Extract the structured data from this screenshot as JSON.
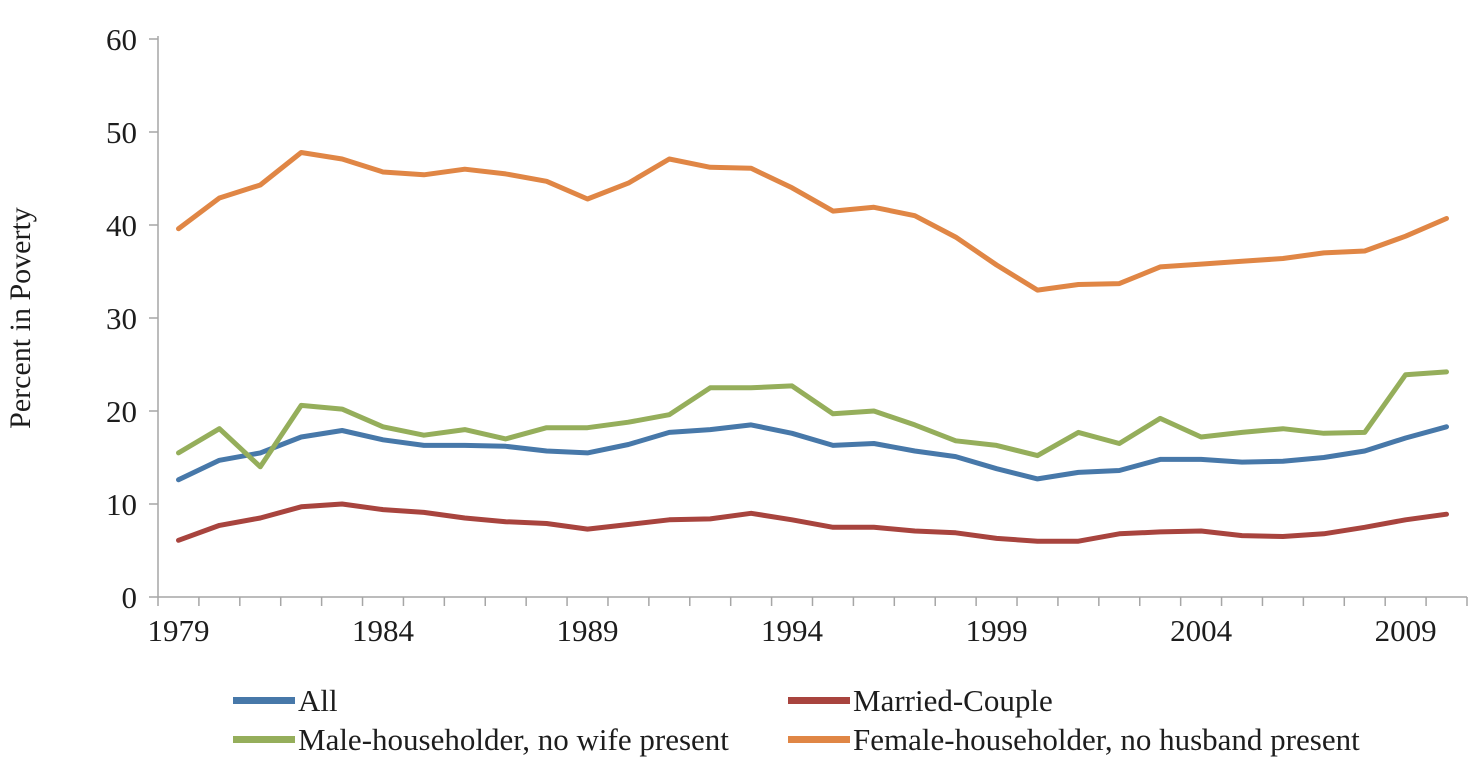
{
  "chart_data": {
    "type": "line",
    "title": "",
    "xlabel": "",
    "ylabel": "Percent in Poverty",
    "ylim": [
      0,
      60
    ],
    "yticks": [
      0,
      10,
      20,
      30,
      40,
      50,
      60
    ],
    "grid": false,
    "legend_position": "bottom",
    "x": [
      1979,
      1980,
      1981,
      1982,
      1983,
      1984,
      1985,
      1986,
      1987,
      1988,
      1989,
      1990,
      1991,
      1992,
      1993,
      1994,
      1995,
      1996,
      1997,
      1998,
      1999,
      2000,
      2001,
      2002,
      2003,
      2004,
      2005,
      2006,
      2007,
      2008,
      2009,
      2010
    ],
    "xticks": [
      1979,
      1984,
      1989,
      1994,
      1999,
      2004,
      2009
    ],
    "axis_color": "#a6a6a6",
    "text_color": "#1d1d1d",
    "series": [
      {
        "name": "All",
        "color": "#4778A9",
        "values": [
          12.6,
          14.7,
          15.5,
          17.2,
          17.9,
          16.9,
          16.3,
          16.3,
          16.2,
          15.7,
          15.5,
          16.4,
          17.7,
          18.0,
          18.5,
          17.6,
          16.3,
          16.5,
          15.7,
          15.1,
          13.8,
          12.7,
          13.4,
          13.6,
          14.8,
          14.8,
          14.5,
          14.6,
          15.0,
          15.7,
          17.1,
          18.3
        ]
      },
      {
        "name": "Married-Couple",
        "color": "#A8443E",
        "values": [
          6.1,
          7.7,
          8.5,
          9.7,
          10.0,
          9.4,
          9.1,
          8.5,
          8.1,
          7.9,
          7.3,
          7.8,
          8.3,
          8.4,
          9.0,
          8.3,
          7.5,
          7.5,
          7.1,
          6.9,
          6.3,
          6.0,
          6.0,
          6.8,
          7.0,
          7.1,
          6.6,
          6.5,
          6.8,
          7.5,
          8.3,
          8.9
        ]
      },
      {
        "name": "Male-householder, no wife present",
        "color": "#95AE5B",
        "values": [
          15.5,
          18.1,
          14.0,
          20.6,
          20.2,
          18.3,
          17.4,
          18.0,
          17.0,
          18.2,
          18.2,
          18.8,
          19.6,
          22.5,
          22.5,
          22.7,
          19.7,
          20.0,
          18.5,
          16.8,
          16.3,
          15.2,
          17.7,
          16.5,
          19.2,
          17.2,
          17.7,
          18.1,
          17.6,
          17.7,
          23.9,
          24.2
        ]
      },
      {
        "name": "Female-householder, no husband present",
        "color": "#E08645",
        "values": [
          39.6,
          42.9,
          44.3,
          47.8,
          47.1,
          45.7,
          45.4,
          46.0,
          45.5,
          44.7,
          42.8,
          44.5,
          47.1,
          46.2,
          46.1,
          44.0,
          41.5,
          41.9,
          41.0,
          38.7,
          35.7,
          33.0,
          33.6,
          33.7,
          35.5,
          35.8,
          36.1,
          36.4,
          37.0,
          37.2,
          38.8,
          40.7
        ]
      }
    ]
  }
}
